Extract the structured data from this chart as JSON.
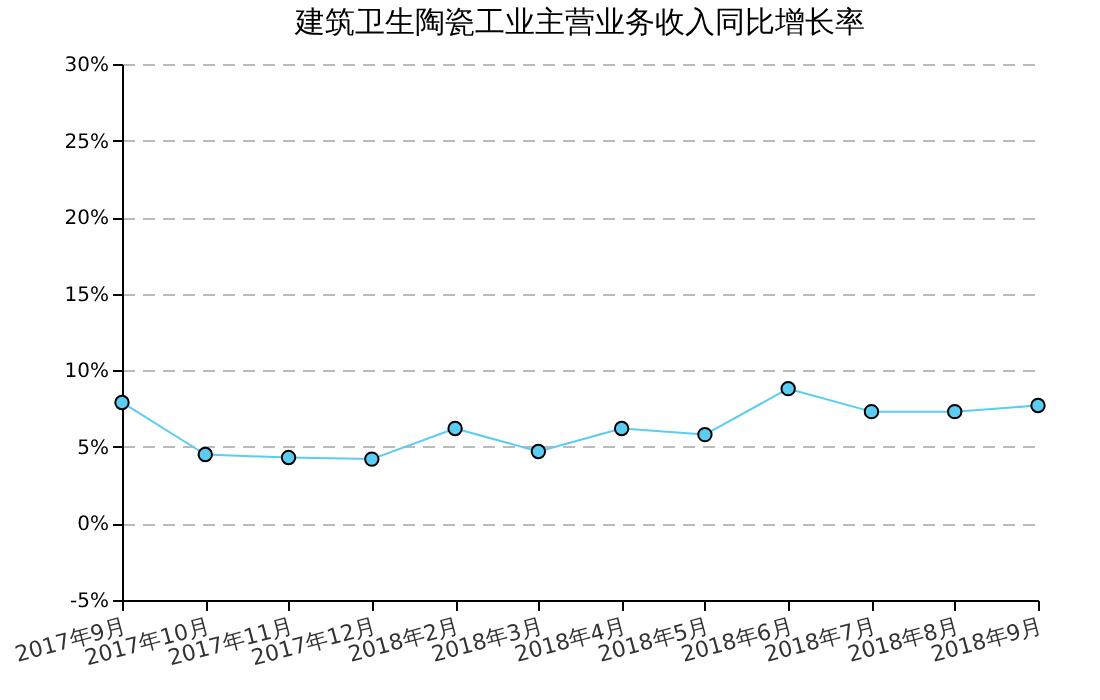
{
  "chart_data": {
    "type": "line",
    "title": "建筑卫生陶瓷工业主营业务收入同比增长率",
    "categories": [
      "2017年9月",
      "2017年10月",
      "2017年11月",
      "2017年12月",
      "2018年2月",
      "2018年3月",
      "2018年4月",
      "2018年5月",
      "2018年6月",
      "2018年7月",
      "2018年8月",
      "2018年9月"
    ],
    "series": [
      {
        "color": "#5bcdf2",
        "values": [
          7.9,
          4.5,
          4.3,
          4.2,
          6.2,
          4.7,
          6.2,
          5.8,
          8.8,
          7.3,
          7.3,
          7.7
        ]
      }
    ],
    "ylim": [
      -5,
      30
    ],
    "yticks": [
      {
        "value": -5,
        "label": "-5%"
      },
      {
        "value": 0,
        "label": "0%"
      },
      {
        "value": 5,
        "label": "5%"
      },
      {
        "value": 10,
        "label": "10%"
      },
      {
        "value": 15,
        "label": "15%"
      },
      {
        "value": 20,
        "label": "20%"
      },
      {
        "value": 25,
        "label": "25%"
      },
      {
        "value": 30,
        "label": "30%"
      }
    ],
    "grid": "y",
    "marker": "circle",
    "line_style": "solid"
  }
}
